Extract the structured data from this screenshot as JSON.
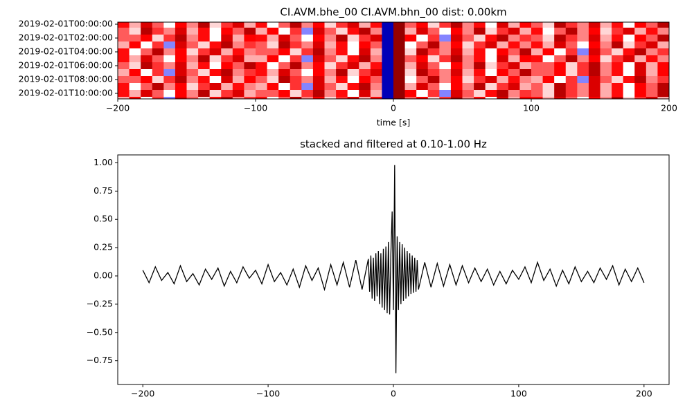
{
  "chart_data": [
    {
      "type": "heatmap",
      "title": "CI.AVM.bhe_00 CI.AVM.bhn_00  dist: 0.00km",
      "xlabel": "time [s]",
      "colormap": "seismic",
      "zlim": [
        -1,
        1
      ],
      "xlim": [
        -200,
        200
      ],
      "xticks": [
        {
          "value": -200,
          "label": "−200"
        },
        {
          "value": -100,
          "label": "−100"
        },
        0,
        100,
        200
      ],
      "ylim": [
        10.8,
        -0.3
      ],
      "yticks": [
        {
          "value": 0,
          "label": "2019-02-01T00:00:00"
        },
        {
          "value": 2,
          "label": "2019-02-01T02:00:00"
        },
        {
          "value": 4,
          "label": "2019-02-01T04:00:00"
        },
        {
          "value": 6,
          "label": "2019-02-01T06:00:00"
        },
        {
          "value": 8,
          "label": "2019-02-01T08:00:00"
        },
        {
          "value": 10,
          "label": "2019-02-01T10:00:00"
        }
      ],
      "y": [
        0,
        1,
        2,
        3,
        4,
        5,
        6,
        7,
        8,
        9,
        10,
        11
      ],
      "z": [
        [
          0.6,
          0.2,
          0.8,
          0.4,
          0,
          0.7,
          0.3,
          0.9,
          0.1,
          0.5,
          0.8,
          0.2,
          0.6,
          0,
          0.4,
          0.9,
          0.3,
          0.7,
          0.1,
          0.5,
          0.8,
          0.2,
          0.6,
          -0.9,
          1,
          0.4,
          0.7,
          0.1,
          0.5,
          0.9,
          0.3,
          0.6,
          0,
          0.8,
          0.2,
          0.7,
          0.4,
          0.1,
          0.9,
          0.5,
          0.3,
          0.8,
          0.2,
          0.6,
          0,
          0.7,
          0.4,
          0.9
        ],
        [
          0.4,
          0.1,
          0.9,
          0.5,
          0.3,
          0.8,
          0.2,
          0.6,
          0,
          0.7,
          0.4,
          0.9,
          0.2,
          0.7,
          0,
          0.5,
          -0.3,
          0.8,
          0.4,
          0.1,
          0.6,
          0.9,
          0.3,
          -0.9,
          1,
          0.2,
          0.8,
          0.4,
          0,
          0.7,
          0.3,
          0.9,
          0.1,
          0.5,
          0.8,
          0.2,
          0.6,
          0,
          0.4,
          0.9,
          0.3,
          0.7,
          0.1,
          0.5,
          0.8,
          0.2,
          0.6,
          0.3
        ],
        [
          0.4,
          0.4,
          0.7,
          0.1,
          0.5,
          0.9,
          0.3,
          0.6,
          0,
          0.8,
          0.2,
          0.7,
          0.6,
          0.2,
          0.8,
          0.4,
          0,
          0.7,
          0.3,
          0.9,
          0.1,
          0.5,
          0.8,
          -0.9,
          1,
          0.7,
          0,
          0.5,
          -0.3,
          0.8,
          0.4,
          0.1,
          0.6,
          0.9,
          0.3,
          0.5,
          0.4,
          0.1,
          0.9,
          0.5,
          0.3,
          0.8,
          0.2,
          0.6,
          0,
          0.7,
          0.4,
          0.9
        ],
        [
          0.2,
          0.7,
          0,
          0.5,
          -0.3,
          0.8,
          0.4,
          0.1,
          0.6,
          0.9,
          0.3,
          0.5,
          0.4,
          0.1,
          0.9,
          0.5,
          0.3,
          0.8,
          0.2,
          0.6,
          0,
          0.7,
          0.4,
          -0.9,
          1,
          0,
          0.4,
          0.9,
          0.3,
          0.7,
          0.1,
          0.5,
          0.8,
          0.2,
          0.6,
          0.3,
          0.6,
          0.2,
          0.8,
          0.4,
          0,
          0.7,
          0.3,
          0.9,
          0.1,
          0.5,
          0.8,
          0.2
        ],
        [
          0.6,
          0,
          0.4,
          0.9,
          0.3,
          0.7,
          0.1,
          0.5,
          0.8,
          0.2,
          0.6,
          0.3,
          0.4,
          0.4,
          0.7,
          0.1,
          0.5,
          0.9,
          0.3,
          0.6,
          0,
          0.8,
          0.2,
          -0.9,
          1,
          0.1,
          0.9,
          0.5,
          0.3,
          0.8,
          0.2,
          0.6,
          0,
          0.7,
          0.4,
          0.9,
          0.2,
          0.7,
          0,
          0.5,
          -0.3,
          0.8,
          0.4,
          0.1,
          0.6,
          0.9,
          0.3,
          0.5
        ],
        [
          0.6,
          0.2,
          0.8,
          0.4,
          0,
          0.7,
          0.3,
          0.9,
          0.1,
          0.5,
          0.8,
          0.2,
          0.2,
          0.7,
          0,
          0.5,
          -0.3,
          0.8,
          0.4,
          0.1,
          0.6,
          0.9,
          0.3,
          -0.9,
          1,
          0.4,
          0.7,
          0.1,
          0.5,
          0.9,
          0.3,
          0.6,
          0,
          0.8,
          0.2,
          0.7,
          0.6,
          0,
          0.4,
          0.9,
          0.3,
          0.7,
          0.1,
          0.5,
          0.8,
          0.2,
          0.6,
          0.3
        ],
        [
          0.4,
          0.1,
          0.9,
          0.5,
          0.3,
          0.8,
          0.2,
          0.6,
          0,
          0.7,
          0.4,
          0.9,
          0.6,
          0,
          0.4,
          0.9,
          0.3,
          0.7,
          0.1,
          0.5,
          0.8,
          0.2,
          0.6,
          -0.9,
          1,
          0.2,
          0.8,
          0.4,
          0,
          0.7,
          0.3,
          0.9,
          0.1,
          0.5,
          0.8,
          0.2,
          0.4,
          0.4,
          0.7,
          0.1,
          0.5,
          0.9,
          0.3,
          0.6,
          0,
          0.8,
          0.2,
          0.7
        ],
        [
          0.2,
          0.7,
          0,
          0.5,
          -0.3,
          0.8,
          0.4,
          0.1,
          0.6,
          0.9,
          0.3,
          0.5,
          0.6,
          0.2,
          0.8,
          0.4,
          0,
          0.7,
          0.3,
          0.9,
          0.1,
          0.5,
          0.8,
          -0.9,
          1,
          0.1,
          0.9,
          0.5,
          0.3,
          0.8,
          0.2,
          0.6,
          0,
          0.7,
          0.4,
          0.9,
          0.4,
          0.4,
          0.7,
          0.1,
          0.5,
          0.9,
          0.3,
          0.6,
          0,
          0.8,
          0.2,
          0.7
        ],
        [
          0.4,
          0.4,
          0.7,
          0.1,
          0.5,
          0.9,
          0.3,
          0.6,
          0,
          0.8,
          0.2,
          0.7,
          0.4,
          0.1,
          0.9,
          0.5,
          0.3,
          0.8,
          0.2,
          0.6,
          0,
          0.7,
          0.4,
          -0.9,
          1,
          0,
          0.4,
          0.9,
          0.3,
          0.7,
          0.1,
          0.5,
          0.8,
          0.2,
          0.6,
          0.3,
          0.2,
          0.7,
          0,
          0.5,
          -0.3,
          0.8,
          0.4,
          0.1,
          0.6,
          0.9,
          0.3,
          0.5
        ],
        [
          0.6,
          0,
          0.4,
          0.9,
          0.3,
          0.7,
          0.1,
          0.5,
          0.8,
          0.2,
          0.6,
          0.3,
          0.2,
          0.7,
          0,
          0.5,
          -0.3,
          0.8,
          0.4,
          0.1,
          0.6,
          0.9,
          0.3,
          -0.9,
          1,
          0.2,
          0.8,
          0.4,
          0,
          0.7,
          0.3,
          0.9,
          0.1,
          0.5,
          0.8,
          0.2,
          0.4,
          0.1,
          0.9,
          0.5,
          0.3,
          0.8,
          0.2,
          0.6,
          0,
          0.7,
          0.4,
          0.9
        ],
        [
          0.6,
          0.2,
          0.8,
          0.4,
          0,
          0.7,
          0.3,
          0.9,
          0.1,
          0.5,
          0.8,
          0.2,
          0.4,
          0.4,
          0.7,
          0.1,
          0.5,
          0.9,
          0.3,
          0.6,
          0,
          0.8,
          0.2,
          -0.9,
          1,
          0.7,
          0,
          0.5,
          -0.3,
          0.8,
          0.4,
          0.1,
          0.6,
          0.9,
          0.3,
          0.5,
          0.4,
          0.1,
          0.9,
          0.5,
          0.3,
          0.8,
          0.2,
          0.6,
          0,
          0.7,
          0.4,
          0.9
        ],
        [
          0.2,
          0.7,
          0,
          0.5,
          -0.3,
          0.8,
          0.4,
          0.1,
          0.6,
          0.9,
          0.3,
          0.5,
          0.6,
          0,
          0.4,
          0.9,
          0.3,
          0.7,
          0.1,
          0.5,
          0.8,
          0.2,
          0.6,
          -0.9,
          1,
          0.4,
          0.7,
          0.1,
          0.5,
          0.9,
          0.3,
          0.6,
          0,
          0.8,
          0.2,
          0.7,
          0.6,
          0.2,
          0.8,
          0.4,
          0,
          0.7,
          0.3,
          0.9,
          0.1,
          0.5,
          0.8,
          0.2
        ]
      ]
    },
    {
      "type": "line",
      "title": "stacked and filtered at 0.10-1.00 Hz",
      "color": "#000000",
      "xlim": [
        -220,
        220
      ],
      "xticks": [
        {
          "value": -200,
          "label": "−200"
        },
        {
          "value": -100,
          "label": "−100"
        },
        0,
        100,
        200
      ],
      "ylim": [
        -0.96,
        1.07
      ],
      "yticks": [
        {
          "value": -0.75,
          "label": "−0.75"
        },
        {
          "value": -0.5,
          "label": "−0.50"
        },
        {
          "value": -0.25,
          "label": "−0.25"
        },
        {
          "value": 0,
          "label": "0.00"
        },
        {
          "value": 0.25,
          "label": "0.25"
        },
        {
          "value": 0.5,
          "label": "0.50"
        },
        {
          "value": 0.75,
          "label": "0.75"
        },
        {
          "value": 1,
          "label": "1.00"
        }
      ],
      "x": [
        -200,
        -195,
        -190,
        -185,
        -180,
        -175,
        -170,
        -165,
        -160,
        -155,
        -150,
        -145,
        -140,
        -135,
        -130,
        -125,
        -120,
        -115,
        -110,
        -105,
        -100,
        -95,
        -90,
        -85,
        -80,
        -75,
        -70,
        -65,
        -60,
        -55,
        -50,
        -45,
        -40,
        -35,
        -30,
        -25,
        -20,
        -19,
        -18,
        -17,
        -16,
        -15,
        -14,
        -13,
        -12,
        -11,
        -10,
        -9,
        -8,
        -7,
        -6,
        -5,
        -4,
        -3,
        -2,
        -1,
        0,
        1,
        2,
        3,
        4,
        5,
        6,
        7,
        8,
        9,
        10,
        11,
        12,
        13,
        14,
        15,
        16,
        17,
        18,
        19,
        20,
        25,
        30,
        35,
        40,
        45,
        50,
        55,
        60,
        65,
        70,
        75,
        80,
        85,
        90,
        95,
        100,
        105,
        110,
        115,
        120,
        125,
        130,
        135,
        140,
        145,
        150,
        155,
        160,
        165,
        170,
        175,
        180,
        185,
        190,
        195,
        200
      ],
      "values": [
        0.05,
        -0.06,
        0.08,
        -0.04,
        0.03,
        -0.07,
        0.09,
        -0.05,
        0.02,
        -0.08,
        0.06,
        -0.03,
        0.07,
        -0.09,
        0.04,
        -0.06,
        0.08,
        -0.02,
        0.05,
        -0.07,
        0.1,
        -0.05,
        0.03,
        -0.08,
        0.06,
        -0.1,
        0.09,
        -0.04,
        0.07,
        -0.12,
        0.1,
        -0.08,
        0.12,
        -0.1,
        0.14,
        -0.12,
        0.15,
        -0.14,
        0.18,
        -0.2,
        0.16,
        -0.22,
        0.2,
        -0.18,
        0.22,
        -0.25,
        0.2,
        -0.28,
        0.24,
        -0.3,
        0.26,
        -0.33,
        0.3,
        -0.34,
        0.2,
        0.57,
        -0.3,
        0.98,
        -0.86,
        0.35,
        -0.3,
        0.3,
        -0.25,
        0.28,
        -0.22,
        0.25,
        -0.2,
        0.22,
        -0.18,
        0.2,
        -0.16,
        0.18,
        -0.15,
        0.16,
        -0.14,
        0.14,
        -0.12,
        0.12,
        -0.1,
        0.11,
        -0.09,
        0.1,
        -0.08,
        0.09,
        -0.06,
        0.07,
        -0.05,
        0.06,
        -0.08,
        0.04,
        -0.07,
        0.05,
        -0.03,
        0.08,
        -0.06,
        0.12,
        -0.04,
        0.06,
        -0.09,
        0.05,
        -0.07,
        0.08,
        -0.05,
        0.04,
        -0.06,
        0.07,
        -0.03,
        0.09,
        -0.08,
        0.06,
        -0.05,
        0.07,
        -0.06
      ]
    }
  ]
}
